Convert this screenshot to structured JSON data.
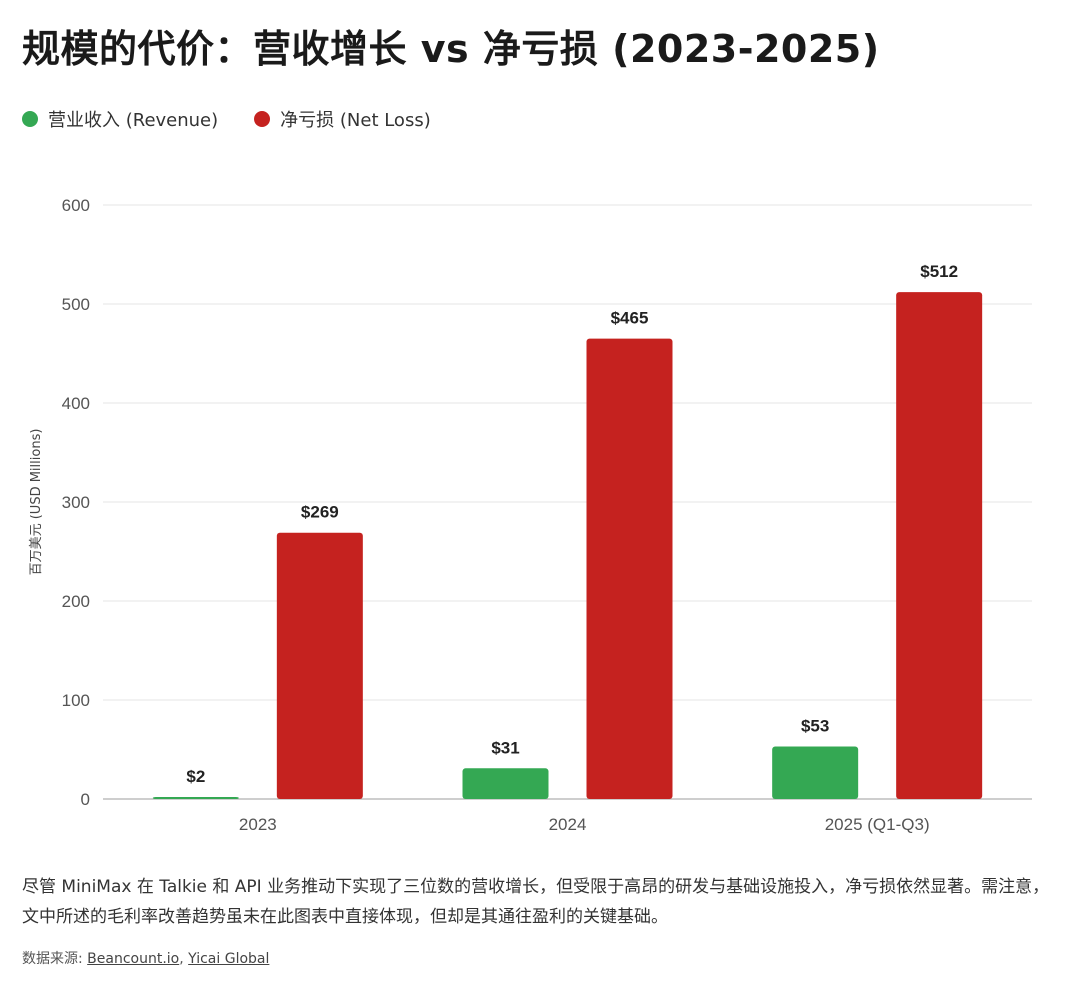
{
  "title": "规模的代价：营收增长 vs 净亏损 (2023-2025)",
  "legend": {
    "revenue": "营业收入 (Revenue)",
    "loss": "净亏损 (Net Loss)"
  },
  "colors": {
    "revenue": "#34a853",
    "loss": "#c5221f",
    "grid": "#e6e6e6",
    "axis": "#bdbdbd"
  },
  "chart_data": {
    "type": "bar",
    "categories": [
      "2023",
      "2024",
      "2025 (Q1-Q3)"
    ],
    "series": [
      {
        "name": "营业收入 (Revenue)",
        "key": "revenue",
        "values": [
          2,
          31,
          53
        ],
        "labels": [
          "$2",
          "$31",
          "$53"
        ]
      },
      {
        "name": "净亏损 (Net Loss)",
        "key": "loss",
        "values": [
          269,
          465,
          512
        ],
        "labels": [
          "$269",
          "$465",
          "$512"
        ]
      }
    ],
    "ylabel": "百万美元 (USD Millions)",
    "ylim": [
      0,
      600
    ],
    "yticks": [
      0,
      100,
      200,
      300,
      400,
      500,
      600
    ],
    "grid": true,
    "legend_position": "top-left"
  },
  "description": "尽管 MiniMax 在 Talkie 和 API 业务推动下实现了三位数的营收增长，但受限于高昂的研发与基础设施投入，净亏损依然显著。需注意，文中所述的毛利率改善趋势虽未在此图表中直接体现，但却是其通往盈利的关键基础。",
  "source": {
    "prefix": "数据来源: ",
    "link1": "Beancount.io",
    "separator": ", ",
    "link2": "Yicai Global"
  }
}
